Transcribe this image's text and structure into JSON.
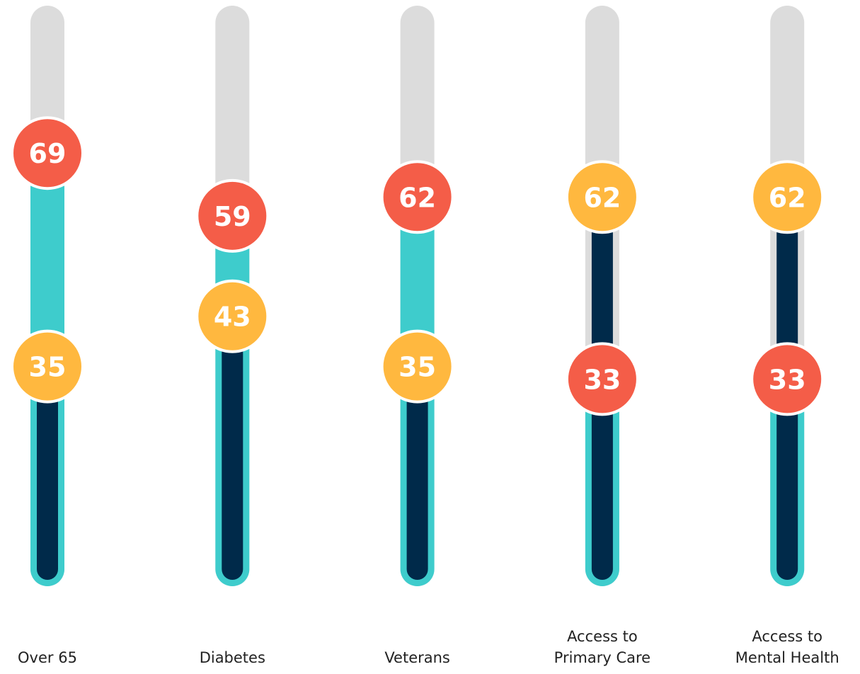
{
  "chart_data": {
    "type": "gauge",
    "categories": [
      "Over 65",
      "Diabetes",
      "Veterans",
      "Access to\nPrimary Care",
      "Access to\nMental Health"
    ],
    "series": [
      {
        "color": "#f45d48",
        "fill_color": "#3ecccc",
        "values": [
          69,
          59,
          62,
          33,
          33
        ]
      },
      {
        "color": "#ffb83f",
        "fill_color": "#002a4a",
        "values": [
          35,
          43,
          35,
          62,
          62
        ]
      }
    ],
    "track_color": "#dcdcdc",
    "ylim": [
      0,
      90
    ]
  }
}
